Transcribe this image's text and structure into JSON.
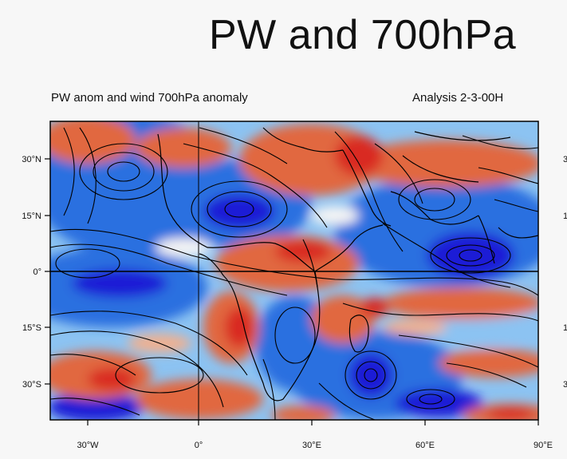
{
  "title": "PW and 700hPa",
  "subtitle_left": "PW anom and wind 700hPa anomaly",
  "subtitle_right": "Analysis 2-3-00H",
  "lat_labels": [
    "30°N",
    "15°N",
    "0°",
    "15°S",
    "30°S"
  ],
  "lon_labels": [
    "30°W",
    "0°",
    "30°E",
    "60°E",
    "90°E"
  ],
  "right_edge_labels": [
    "3",
    "1",
    "1",
    "3"
  ],
  "colors": {
    "moist_dark": "#1a1ad6",
    "moist": "#2c6fe0",
    "moist_light": "#8cc3f2",
    "neutral": "#f4f4f4",
    "dry_light": "#f1b08f",
    "dry": "#e1673f",
    "dry_dark": "#d92a24",
    "streamline": "#000000"
  }
}
